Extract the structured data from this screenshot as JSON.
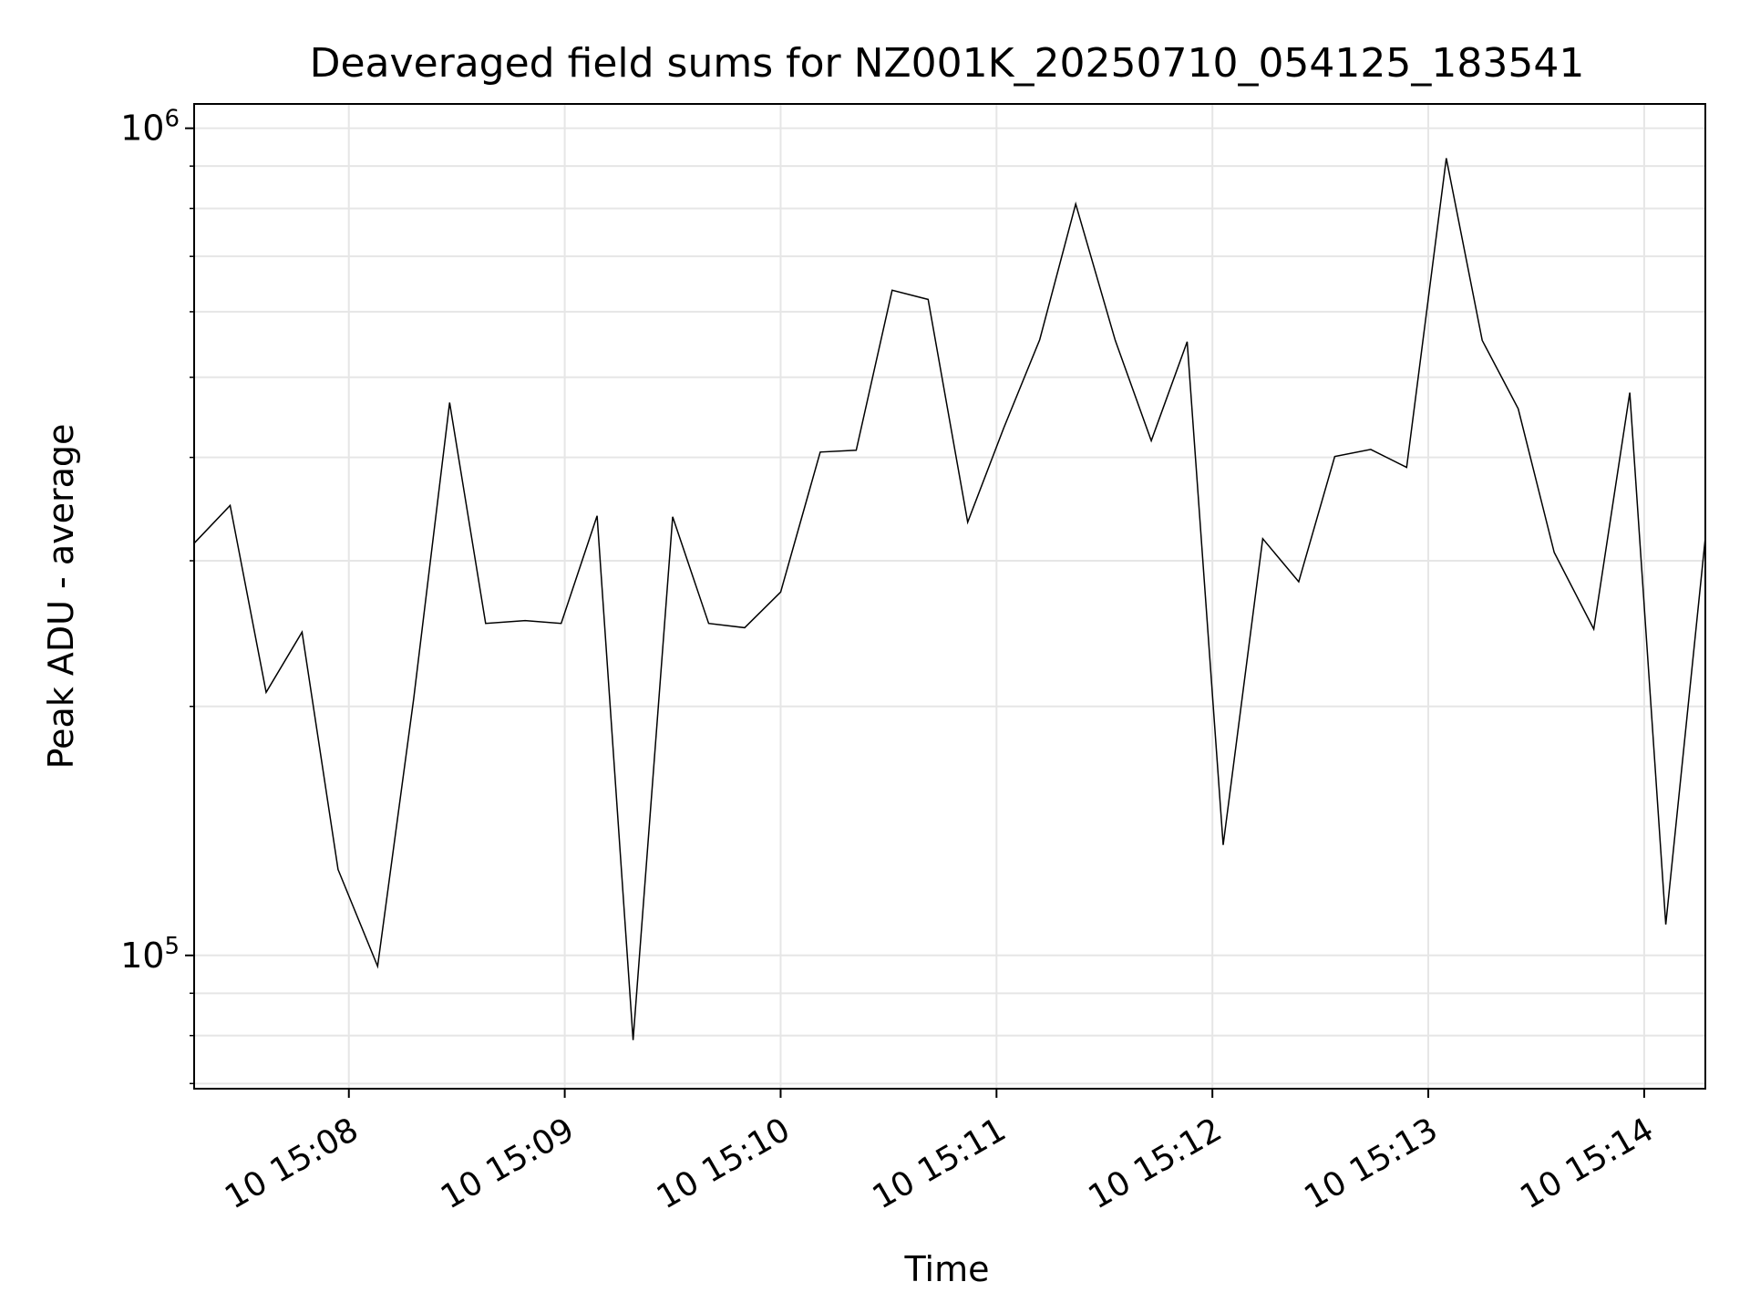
{
  "chart_data": {
    "type": "line",
    "title": "Deaveraged field sums for NZ001K_20250710_054125_183541",
    "xlabel": "Time",
    "ylabel": "Peak ADU - average",
    "yscale": "log",
    "ylim": [
      69000,
      1070000
    ],
    "xlim_seconds_after_15_07": [
      17,
      437
    ],
    "xtick_labels": [
      "10 15:08",
      "10 15:09",
      "10 15:10",
      "10 15:11",
      "10 15:12",
      "10 15:13",
      "10 15:14"
    ],
    "ytick_labels": [
      {
        "base": "10",
        "exp": "5"
      },
      {
        "base": "10",
        "exp": "6"
      }
    ],
    "grid": true,
    "colors": {
      "line": "#000000",
      "grid": "#e6e6e6",
      "axes": "#000000",
      "background": "#ffffff"
    },
    "series": [
      {
        "x": [
          "15:07:17",
          "15:07:27",
          "15:07:37",
          "15:07:47",
          "15:07:57",
          "15:08:08",
          "15:08:18",
          "15:08:28",
          "15:08:38",
          "15:08:49",
          "15:08:59",
          "15:09:09",
          "15:09:19",
          "15:09:30",
          "15:09:40",
          "15:09:50",
          "15:10:00",
          "15:10:11",
          "15:10:21",
          "15:10:31",
          "15:10:41",
          "15:10:52",
          "15:11:02",
          "15:11:12",
          "15:11:22",
          "15:11:33",
          "15:11:43",
          "15:11:53",
          "15:12:03",
          "15:12:14",
          "15:12:24",
          "15:12:34",
          "15:12:44",
          "15:12:54",
          "15:13:05",
          "15:13:15",
          "15:13:25",
          "15:13:35",
          "15:13:46",
          "15:13:56",
          "15:14:06",
          "15:14:17"
        ],
        "y": [
          315000,
          350000,
          208000,
          246000,
          127000,
          97000,
          204000,
          466000,
          252000,
          254000,
          252000,
          340000,
          79000,
          339000,
          252000,
          249000,
          275000,
          406000,
          408000,
          637000,
          621000,
          334000,
          434000,
          555000,
          810000,
          554000,
          419000,
          552000,
          136000,
          319000,
          283000,
          401000,
          409000,
          389000,
          920000,
          554000,
          458000,
          307000,
          248000,
          479000,
          109000,
          320000
        ]
      }
    ]
  }
}
